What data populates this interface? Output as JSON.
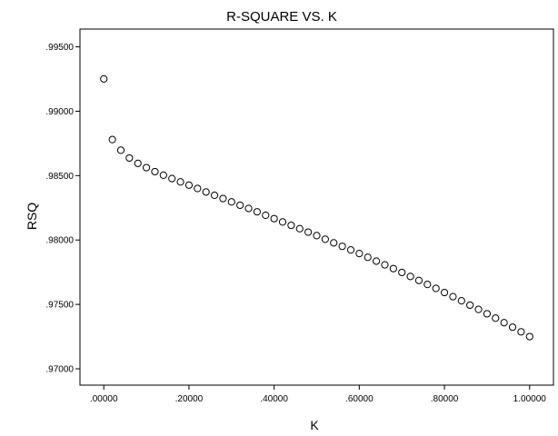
{
  "chart_data": {
    "type": "scatter",
    "title": "R-SQUARE VS. K",
    "xlabel": "K",
    "ylabel": "RSQ",
    "xlim": [
      -0.056,
      1.056
    ],
    "ylim": [
      0.96873,
      0.99638
    ],
    "xticks": [
      0.0,
      0.2,
      0.4,
      0.6,
      0.8,
      1.0
    ],
    "xtick_labels": [
      ".00000",
      ".20000",
      ".40000",
      ".60000",
      ".80000",
      "1.00000"
    ],
    "yticks": [
      0.97,
      0.975,
      0.98,
      0.985,
      0.99,
      0.995
    ],
    "ytick_labels": [
      ".97000",
      ".97500",
      ".98000",
      ".98500",
      ".99000",
      ".99500"
    ],
    "grid": false,
    "marker": "hollow-circle",
    "colors": {
      "plot_bg": "#ffffff",
      "frame": "#000000",
      "marker_stroke": "#000000"
    },
    "series": [
      {
        "x": [
          0.0,
          0.02,
          0.04,
          0.06,
          0.08,
          0.1,
          0.12,
          0.14,
          0.16,
          0.18,
          0.2,
          0.22,
          0.24,
          0.26,
          0.28,
          0.3,
          0.32,
          0.34,
          0.36,
          0.38,
          0.4,
          0.42,
          0.44,
          0.46,
          0.48,
          0.5,
          0.52,
          0.54,
          0.56,
          0.58,
          0.6,
          0.62,
          0.64,
          0.66,
          0.68,
          0.7,
          0.72,
          0.74,
          0.76,
          0.78,
          0.8,
          0.82,
          0.84,
          0.86,
          0.88,
          0.9,
          0.92,
          0.94,
          0.96,
          0.98,
          1.0
        ],
        "y": [
          0.99251,
          0.9878,
          0.98697,
          0.98637,
          0.98595,
          0.98562,
          0.98531,
          0.98503,
          0.98477,
          0.98451,
          0.98426,
          0.984,
          0.98373,
          0.98347,
          0.98322,
          0.98296,
          0.9827,
          0.98245,
          0.98219,
          0.98192,
          0.98166,
          0.9814,
          0.98114,
          0.98088,
          0.98061,
          0.98034,
          0.98006,
          0.97978,
          0.97951,
          0.97923,
          0.97895,
          0.97866,
          0.97836,
          0.97807,
          0.97778,
          0.97748,
          0.97717,
          0.97686,
          0.97655,
          0.97624,
          0.97592,
          0.9756,
          0.97528,
          0.97494,
          0.97461,
          0.97427,
          0.97393,
          0.97358,
          0.97323,
          0.97287,
          0.9725
        ]
      }
    ]
  }
}
